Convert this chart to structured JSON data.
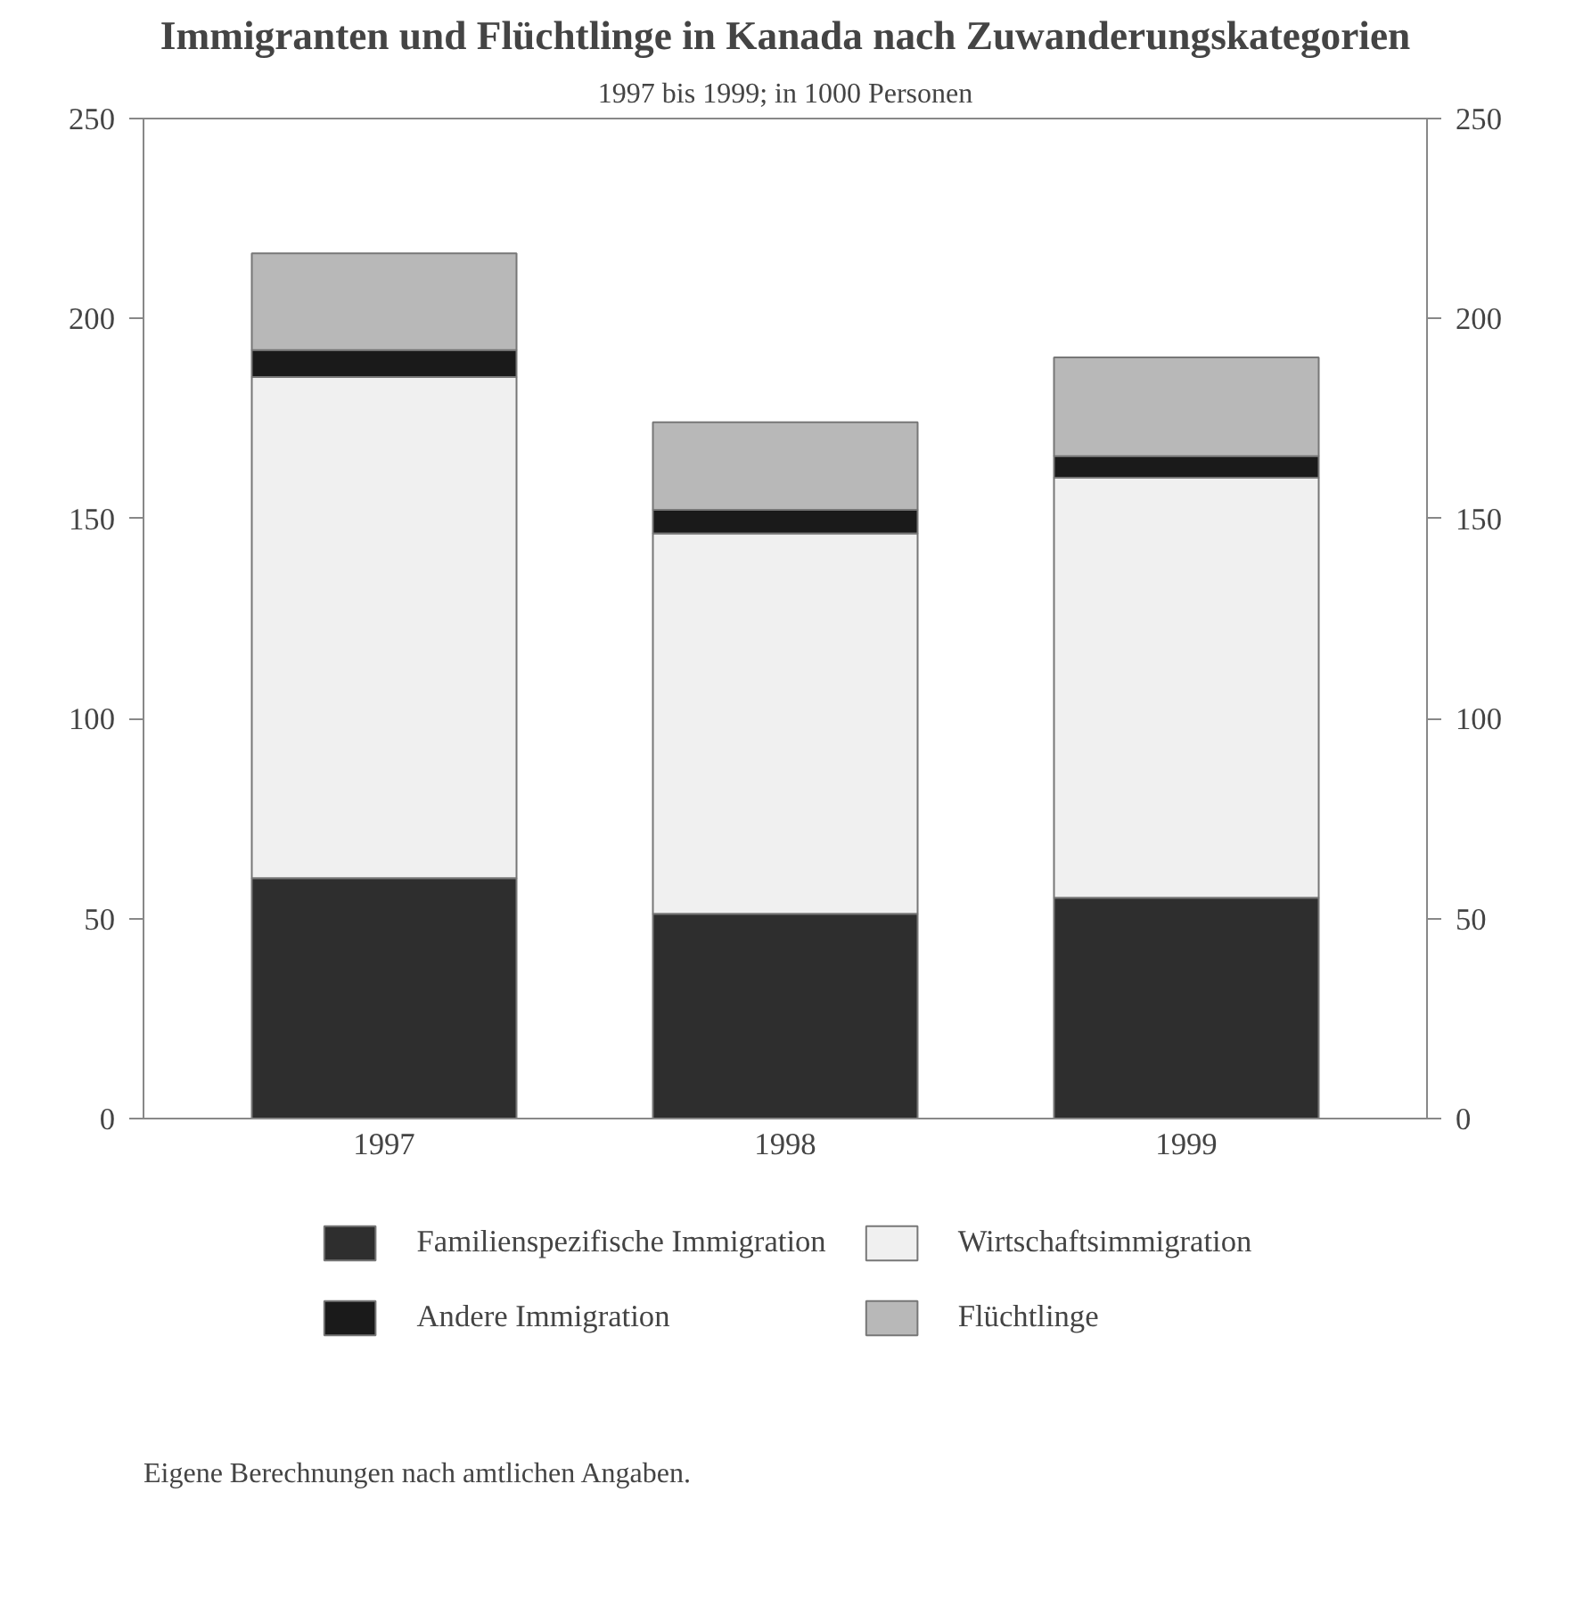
{
  "chart_data": {
    "type": "bar",
    "title": "Immigranten und Flüchtlinge in Kanada nach Zuwanderungskategorien",
    "subtitle": "1997 bis 1999; in 1000 Personen",
    "categories": [
      "1997",
      "1998",
      "1999"
    ],
    "stacked": true,
    "series": [
      {
        "name": "Familienspezifische Immigration",
        "color": "#2e2e2e",
        "values": [
          60.1,
          51.2,
          55.2
        ]
      },
      {
        "name": "Wirtschaftsimmigration",
        "color": "#f0f0f0",
        "values": [
          125.3,
          95.1,
          105.0
        ]
      },
      {
        "name": "Andere Immigration",
        "color": "#1a1a1a",
        "values": [
          6.7,
          5.9,
          5.4
        ]
      },
      {
        "name": "Flüchtlinge",
        "color": "#b8b8b8",
        "values": [
          24.2,
          21.9,
          24.7
        ]
      }
    ],
    "ylim": [
      0,
      250
    ],
    "yticks": [
      0,
      50,
      100,
      150,
      200,
      250
    ],
    "y2lim": [
      0,
      250
    ],
    "y2ticks": [
      0,
      50,
      100,
      150,
      200,
      250
    ],
    "grid": false,
    "legend": "bottom",
    "annotations": [
      "Eigene Berechnungen nach amtlichen Angaben."
    ]
  }
}
